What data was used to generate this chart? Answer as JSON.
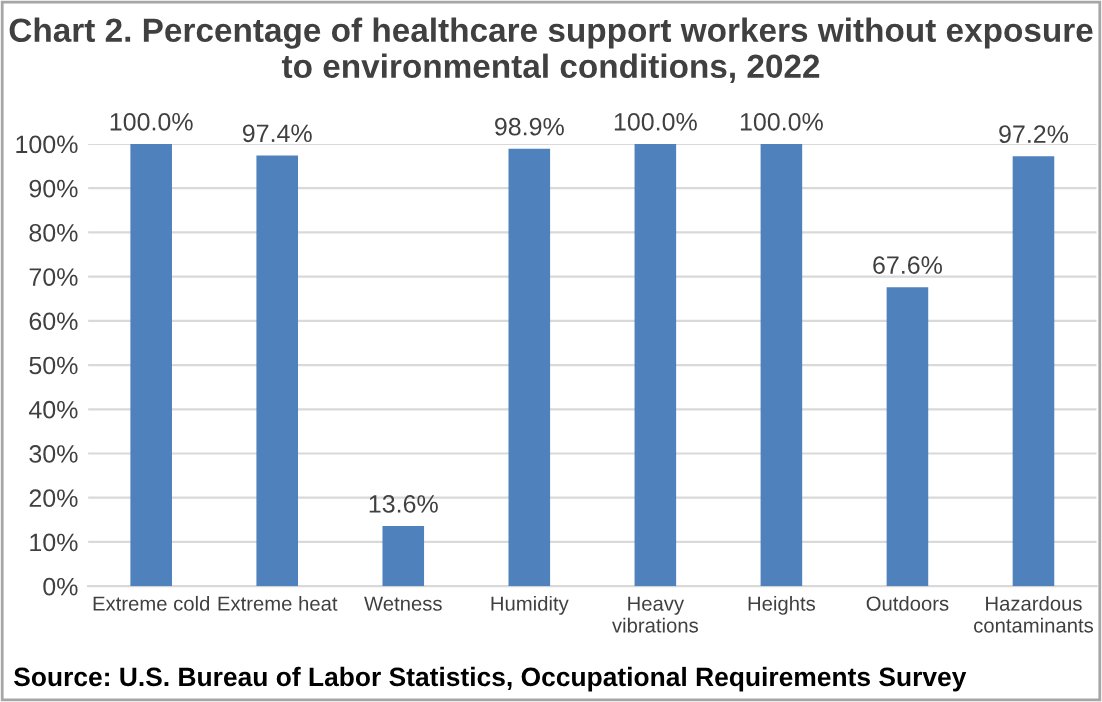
{
  "chart_data": {
    "type": "bar",
    "title": "Chart 2. Percentage of healthcare support workers without exposure to environmental conditions, 2022",
    "categories": [
      "Extreme cold",
      "Extreme heat",
      "Wetness",
      "Humidity",
      "Heavy\nvibrations",
      "Heights",
      "Outdoors",
      "Hazardous\ncontaminants"
    ],
    "values": [
      100.0,
      97.4,
      13.6,
      98.9,
      100.0,
      100.0,
      67.6,
      97.2
    ],
    "value_labels": [
      "100.0%",
      "97.4%",
      "13.6%",
      "98.9%",
      "100.0%",
      "100.0%",
      "67.6%",
      "97.2%"
    ],
    "color": "#4f81bd",
    "ylim": [
      0,
      100
    ],
    "yticks": [
      {
        "value": 0,
        "label": "0%"
      },
      {
        "value": 10,
        "label": "10%"
      },
      {
        "value": 20,
        "label": "20%"
      },
      {
        "value": 30,
        "label": "30%"
      },
      {
        "value": 40,
        "label": "40%"
      },
      {
        "value": 50,
        "label": "50%"
      },
      {
        "value": 60,
        "label": "60%"
      },
      {
        "value": 70,
        "label": "70%"
      },
      {
        "value": 80,
        "label": "80%"
      },
      {
        "value": 90,
        "label": "90%"
      },
      {
        "value": 100,
        "label": "100%"
      }
    ],
    "grid": "y",
    "annotations": [
      "Source: U.S. Bureau of Labor Statistics, Occupational Requirements Survey"
    ]
  }
}
